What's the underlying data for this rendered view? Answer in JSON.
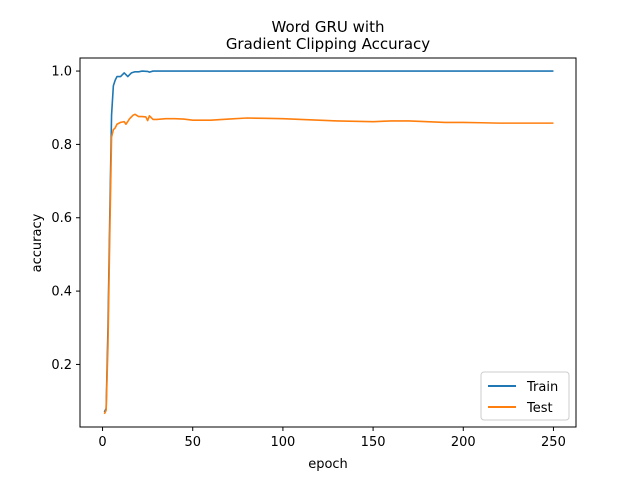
{
  "chart_data": {
    "type": "line",
    "title_lines": [
      "Word GRU with",
      "Gradient Clipping Accuracy"
    ],
    "xlabel": "epoch",
    "ylabel": "accuracy",
    "xlim": [
      -12.5,
      262.5
    ],
    "ylim": [
      0.0294,
      1.0356
    ],
    "x_ticks": [
      0,
      50,
      100,
      150,
      200,
      250
    ],
    "y_ticks": [
      0.2,
      0.4,
      0.6,
      0.8,
      1.0
    ],
    "x_tick_labels": [
      "0",
      "50",
      "100",
      "150",
      "200",
      "250"
    ],
    "y_tick_labels": [
      "0.2",
      "0.4",
      "0.6",
      "0.8",
      "1.0"
    ],
    "grid": false,
    "legend_position": "bottom-right",
    "series": [
      {
        "name": "Train",
        "color": "#1f77b4",
        "points": [
          [
            1,
            0.07
          ],
          [
            2,
            0.08
          ],
          [
            3,
            0.3
          ],
          [
            4,
            0.6
          ],
          [
            5,
            0.88
          ],
          [
            6,
            0.96
          ],
          [
            7,
            0.975
          ],
          [
            8,
            0.985
          ],
          [
            10,
            0.985
          ],
          [
            11,
            0.99
          ],
          [
            12,
            0.995
          ],
          [
            13,
            0.99
          ],
          [
            14,
            0.985
          ],
          [
            15,
            0.99
          ],
          [
            16,
            0.995
          ],
          [
            18,
            0.998
          ],
          [
            20,
            0.998
          ],
          [
            22,
            1.0
          ],
          [
            25,
            0.999
          ],
          [
            26,
            0.997
          ],
          [
            28,
            1.0
          ],
          [
            250,
            1.0
          ]
        ]
      },
      {
        "name": "Test",
        "color": "#ff7f0e",
        "points": [
          [
            1,
            0.065
          ],
          [
            2,
            0.075
          ],
          [
            3,
            0.25
          ],
          [
            4,
            0.55
          ],
          [
            5,
            0.82
          ],
          [
            6,
            0.84
          ],
          [
            7,
            0.845
          ],
          [
            8,
            0.855
          ],
          [
            10,
            0.86
          ],
          [
            12,
            0.862
          ],
          [
            13,
            0.855
          ],
          [
            15,
            0.87
          ],
          [
            17,
            0.88
          ],
          [
            18,
            0.882
          ],
          [
            20,
            0.876
          ],
          [
            22,
            0.876
          ],
          [
            24,
            0.875
          ],
          [
            25,
            0.865
          ],
          [
            26,
            0.878
          ],
          [
            28,
            0.868
          ],
          [
            30,
            0.868
          ],
          [
            35,
            0.87
          ],
          [
            40,
            0.87
          ],
          [
            45,
            0.869
          ],
          [
            50,
            0.866
          ],
          [
            60,
            0.866
          ],
          [
            70,
            0.869
          ],
          [
            80,
            0.872
          ],
          [
            90,
            0.871
          ],
          [
            100,
            0.87
          ],
          [
            110,
            0.868
          ],
          [
            120,
            0.866
          ],
          [
            130,
            0.864
          ],
          [
            140,
            0.863
          ],
          [
            150,
            0.862
          ],
          [
            160,
            0.864
          ],
          [
            170,
            0.864
          ],
          [
            180,
            0.862
          ],
          [
            190,
            0.86
          ],
          [
            200,
            0.86
          ],
          [
            210,
            0.859
          ],
          [
            220,
            0.858
          ],
          [
            230,
            0.858
          ],
          [
            240,
            0.858
          ],
          [
            250,
            0.858
          ]
        ]
      }
    ]
  }
}
